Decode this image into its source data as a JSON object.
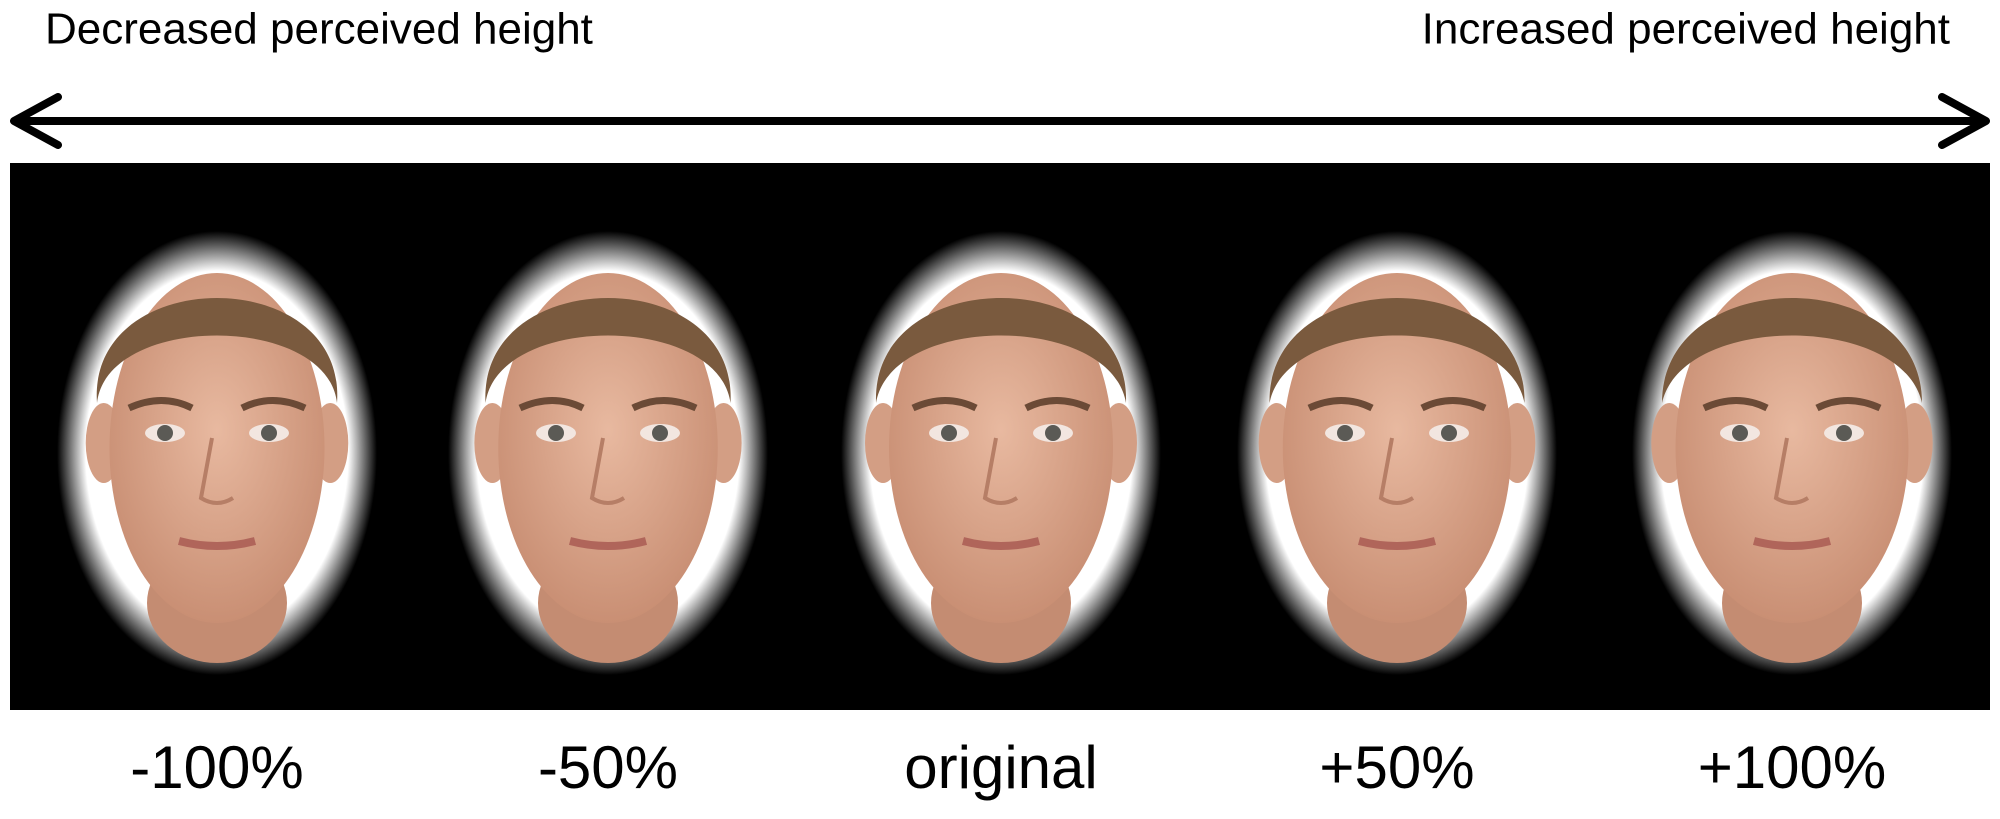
{
  "header": {
    "left_label": "Decreased perceived height",
    "right_label": "Increased perceived height"
  },
  "faces": [
    {
      "label": "-100%"
    },
    {
      "label": "-50%"
    },
    {
      "label": "original"
    },
    {
      "label": "+50%"
    },
    {
      "label": "+100%"
    }
  ]
}
